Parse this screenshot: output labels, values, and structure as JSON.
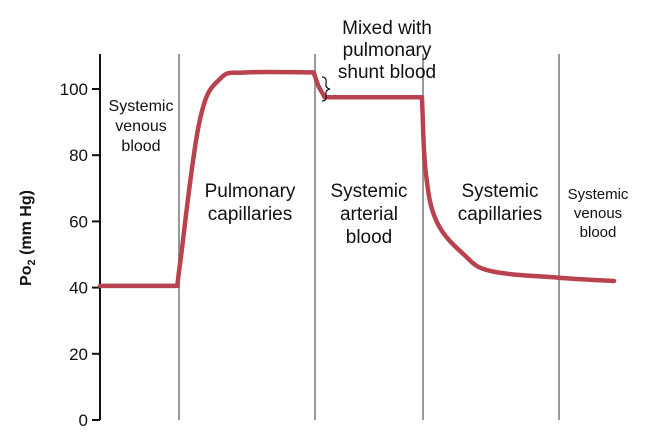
{
  "chart_data": {
    "type": "line",
    "title": "",
    "xlabel": "",
    "ylabel": {
      "main": "Po",
      "subscript": "2",
      "unit": " (mm Hg)"
    },
    "ylim": [
      0,
      110
    ],
    "yticks": [
      0,
      20,
      40,
      60,
      80,
      100
    ],
    "grid": false,
    "legend": "none",
    "line_color": "#b8434f",
    "divider_color": "#999999",
    "regions": [
      {
        "key": "systemic-venous-1",
        "lines": [
          "Systemic",
          "venous",
          "blood"
        ]
      },
      {
        "key": "pulmonary-capillaries",
        "lines": [
          "Pulmonary",
          "capillaries"
        ]
      },
      {
        "key": "systemic-arterial",
        "lines": [
          "Systemic",
          "arterial",
          "blood"
        ]
      },
      {
        "key": "systemic-capillaries",
        "lines": [
          "Systemic",
          "capillaries"
        ]
      },
      {
        "key": "systemic-venous-2",
        "lines": [
          "Systemic",
          "venous",
          "blood"
        ]
      }
    ],
    "annotation": {
      "lines": [
        "Mixed with",
        "pulmonary",
        "shunt blood"
      ]
    },
    "dividers": [
      1,
      2,
      3,
      4,
      5
    ],
    "x": [
      0,
      0.98,
      1.02,
      1.3,
      1.6,
      2.0,
      2.98,
      3.06,
      3.18,
      4.6,
      4.98,
      5.04,
      5.2,
      5.6,
      6.0,
      7.0,
      8.0
    ],
    "y": [
      40.5,
      40.5,
      48,
      90,
      103,
      105,
      105,
      101,
      97.5,
      97.5,
      97.5,
      75,
      60,
      50,
      45,
      43,
      42
    ]
  }
}
